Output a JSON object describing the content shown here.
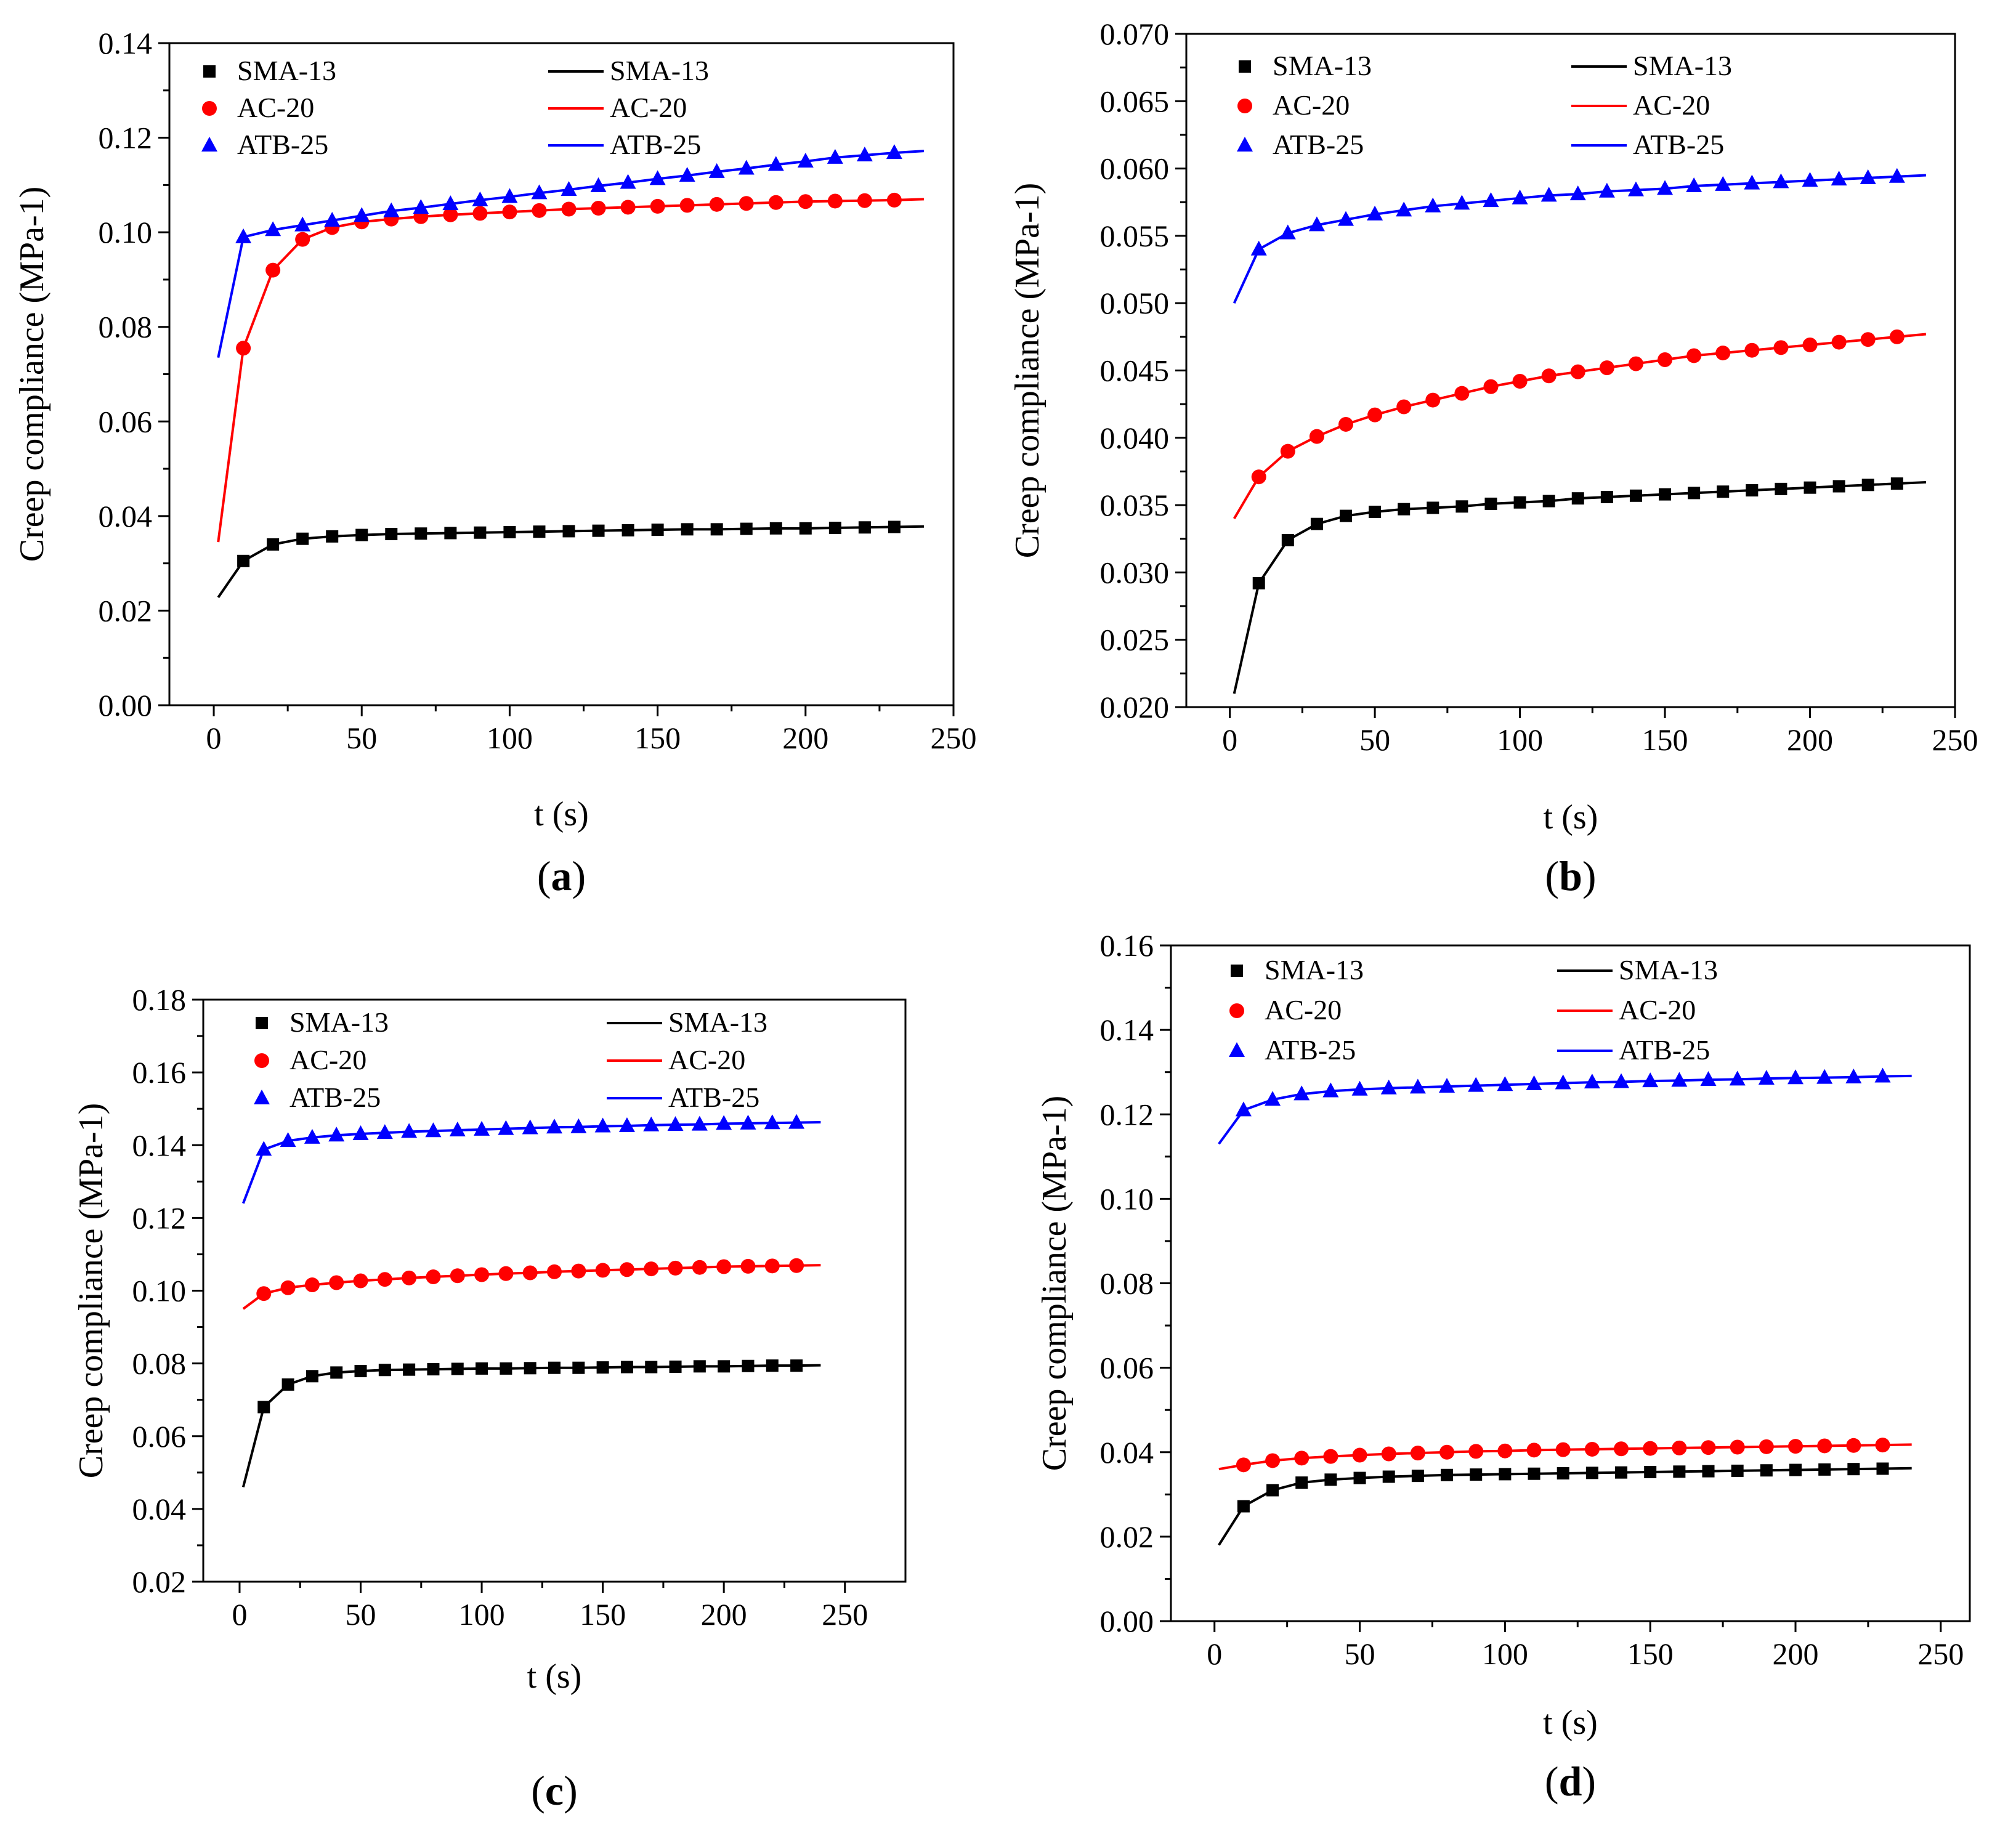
{
  "chart_data": [
    {
      "type": "line",
      "panel_label": "a",
      "xlabel": "t (s)",
      "ylabel": "Creep compliance (MPa-1)",
      "xlim": [
        -15,
        250
      ],
      "ylim": [
        0.0,
        0.14
      ],
      "xticks": [
        0,
        50,
        100,
        150,
        200,
        250
      ],
      "yticks": [
        0.0,
        0.02,
        0.04,
        0.06,
        0.08,
        0.1,
        0.12,
        0.14
      ],
      "ytick_labels": [
        "0.00",
        "0.02",
        "0.04",
        "0.06",
        "0.08",
        "0.10",
        "0.12",
        "0.14"
      ],
      "legend": [
        "SMA-13",
        "AC-20",
        "ATB-25"
      ],
      "series": [
        {
          "name": "SMA-13",
          "color": "#000000",
          "marker": "square",
          "fit_start": 0.0228,
          "x": [
            10,
            20,
            30,
            40,
            50,
            60,
            70,
            80,
            90,
            100,
            110,
            120,
            130,
            140,
            150,
            160,
            170,
            180,
            190,
            200,
            210,
            220,
            230,
            240
          ],
          "y": [
            0.0305,
            0.034,
            0.0352,
            0.0357,
            0.036,
            0.0362,
            0.0363,
            0.0364,
            0.0365,
            0.0366,
            0.0367,
            0.0368,
            0.0369,
            0.037,
            0.0371,
            0.0372,
            0.0372,
            0.0373,
            0.0374,
            0.0374,
            0.0375,
            0.0376,
            0.0377,
            0.0378
          ]
        },
        {
          "name": "AC-20",
          "color": "#ff0000",
          "marker": "circle",
          "fit_start": 0.0345,
          "x": [
            10,
            20,
            30,
            40,
            50,
            60,
            70,
            80,
            90,
            100,
            110,
            120,
            130,
            140,
            150,
            160,
            170,
            180,
            190,
            200,
            210,
            220,
            230,
            240
          ],
          "y": [
            0.0755,
            0.092,
            0.0985,
            0.101,
            0.1022,
            0.1028,
            0.1033,
            0.1037,
            0.104,
            0.1043,
            0.1046,
            0.1049,
            0.1051,
            0.1053,
            0.1055,
            0.1057,
            0.1059,
            0.1061,
            0.1063,
            0.1065,
            0.1066,
            0.1067,
            0.1068,
            0.107
          ]
        },
        {
          "name": "ATB-25",
          "color": "#0000ff",
          "marker": "triangle",
          "fit_start": 0.0735,
          "x": [
            10,
            20,
            30,
            40,
            50,
            60,
            70,
            80,
            90,
            100,
            110,
            120,
            130,
            140,
            150,
            160,
            170,
            180,
            190,
            200,
            210,
            220,
            230,
            240
          ],
          "y": [
            0.099,
            0.1005,
            0.1015,
            0.1025,
            0.1035,
            0.1045,
            0.1052,
            0.106,
            0.1068,
            0.1075,
            0.1083,
            0.109,
            0.1098,
            0.1105,
            0.1113,
            0.112,
            0.1128,
            0.1135,
            0.1143,
            0.115,
            0.1158,
            0.1163,
            0.1168,
            0.1172
          ]
        }
      ]
    },
    {
      "type": "line",
      "panel_label": "b",
      "xlabel": "t (s)",
      "ylabel": "Creep compliance (MPa-1)",
      "xlim": [
        -15,
        250
      ],
      "ylim": [
        0.02,
        0.07
      ],
      "xticks": [
        0,
        50,
        100,
        150,
        200,
        250
      ],
      "yticks": [
        0.02,
        0.025,
        0.03,
        0.035,
        0.04,
        0.045,
        0.05,
        0.055,
        0.06,
        0.065,
        0.07
      ],
      "ytick_labels": [
        "0.020",
        "0.025",
        "0.030",
        "0.035",
        "0.040",
        "0.045",
        "0.050",
        "0.055",
        "0.060",
        "0.065",
        "0.070"
      ],
      "legend": [
        "SMA-13",
        "AC-20",
        "ATB-25"
      ],
      "series": [
        {
          "name": "SMA-13",
          "color": "#000000",
          "marker": "square",
          "fit_start": 0.021,
          "x": [
            10,
            20,
            30,
            40,
            50,
            60,
            70,
            80,
            90,
            100,
            110,
            120,
            130,
            140,
            150,
            160,
            170,
            180,
            190,
            200,
            210,
            220,
            230,
            240
          ],
          "y": [
            0.0292,
            0.0324,
            0.0336,
            0.0342,
            0.0345,
            0.0347,
            0.0348,
            0.0349,
            0.0351,
            0.0352,
            0.0353,
            0.0355,
            0.0356,
            0.0357,
            0.0358,
            0.0359,
            0.036,
            0.0361,
            0.0362,
            0.0363,
            0.0364,
            0.0365,
            0.0366,
            0.0367
          ]
        },
        {
          "name": "AC-20",
          "color": "#ff0000",
          "marker": "circle",
          "fit_start": 0.034,
          "x": [
            10,
            20,
            30,
            40,
            50,
            60,
            70,
            80,
            90,
            100,
            110,
            120,
            130,
            140,
            150,
            160,
            170,
            180,
            190,
            200,
            210,
            220,
            230,
            240
          ],
          "y": [
            0.0371,
            0.039,
            0.0401,
            0.041,
            0.0417,
            0.0423,
            0.0428,
            0.0433,
            0.0438,
            0.0442,
            0.0446,
            0.0449,
            0.0452,
            0.0455,
            0.0458,
            0.0461,
            0.0463,
            0.0465,
            0.0467,
            0.0469,
            0.0471,
            0.0473,
            0.0475,
            0.0477
          ]
        },
        {
          "name": "ATB-25",
          "color": "#0000ff",
          "marker": "triangle",
          "fit_start": 0.05,
          "x": [
            10,
            20,
            30,
            40,
            50,
            60,
            70,
            80,
            90,
            100,
            110,
            120,
            130,
            140,
            150,
            160,
            170,
            180,
            190,
            200,
            210,
            220,
            230,
            240
          ],
          "y": [
            0.054,
            0.0552,
            0.0558,
            0.0562,
            0.0566,
            0.0569,
            0.0572,
            0.0574,
            0.0576,
            0.0578,
            0.058,
            0.0581,
            0.0583,
            0.0584,
            0.0585,
            0.0587,
            0.0588,
            0.0589,
            0.059,
            0.0591,
            0.0592,
            0.0593,
            0.0594,
            0.0595
          ]
        }
      ]
    },
    {
      "type": "line",
      "panel_label": "c",
      "xlabel": "t (s)",
      "ylabel": "Creep compliance (MPa-1)",
      "xlim": [
        -15,
        275
      ],
      "ylim": [
        0.02,
        0.18
      ],
      "xticks": [
        0,
        50,
        100,
        150,
        200,
        250
      ],
      "yticks": [
        0.02,
        0.04,
        0.06,
        0.08,
        0.1,
        0.12,
        0.14,
        0.16,
        0.18
      ],
      "ytick_labels": [
        "0.02",
        "0.04",
        "0.06",
        "0.08",
        "0.10",
        "0.12",
        "0.14",
        "0.16",
        "0.18"
      ],
      "legend": [
        "SMA-13",
        "AC-20",
        "ATB-25"
      ],
      "series": [
        {
          "name": "SMA-13",
          "color": "#000000",
          "marker": "square",
          "fit_start": 0.046,
          "x": [
            10,
            20,
            30,
            40,
            50,
            60,
            70,
            80,
            90,
            100,
            110,
            120,
            130,
            140,
            150,
            160,
            170,
            180,
            190,
            200,
            210,
            220,
            230,
            240
          ],
          "y": [
            0.068,
            0.0742,
            0.0765,
            0.0775,
            0.0779,
            0.0782,
            0.0783,
            0.0784,
            0.0785,
            0.0786,
            0.0786,
            0.0787,
            0.0788,
            0.0788,
            0.0789,
            0.079,
            0.079,
            0.0791,
            0.0792,
            0.0792,
            0.0793,
            0.0794,
            0.0794,
            0.0795
          ]
        },
        {
          "name": "AC-20",
          "color": "#ff0000",
          "marker": "circle",
          "fit_start": 0.095,
          "x": [
            10,
            20,
            30,
            40,
            50,
            60,
            70,
            80,
            90,
            100,
            110,
            120,
            130,
            140,
            150,
            160,
            170,
            180,
            190,
            200,
            210,
            220,
            230,
            240
          ],
          "y": [
            0.0992,
            0.1008,
            0.1016,
            0.1022,
            0.1027,
            0.1031,
            0.1035,
            0.1038,
            0.1041,
            0.1044,
            0.1047,
            0.1049,
            0.1052,
            0.1054,
            0.1056,
            0.1058,
            0.106,
            0.1062,
            0.1064,
            0.1066,
            0.1067,
            0.1068,
            0.1069,
            0.107
          ]
        },
        {
          "name": "ATB-25",
          "color": "#0000ff",
          "marker": "triangle",
          "fit_start": 0.124,
          "x": [
            10,
            20,
            30,
            40,
            50,
            60,
            70,
            80,
            90,
            100,
            110,
            120,
            130,
            140,
            150,
            160,
            170,
            180,
            190,
            200,
            210,
            220,
            230,
            240
          ],
          "y": [
            0.1388,
            0.1412,
            0.1421,
            0.1427,
            0.1431,
            0.1434,
            0.1437,
            0.1439,
            0.1441,
            0.1443,
            0.1445,
            0.1447,
            0.1449,
            0.145,
            0.1452,
            0.1453,
            0.1455,
            0.1456,
            0.1457,
            0.1459,
            0.146,
            0.1461,
            0.1462,
            0.1463
          ]
        }
      ]
    },
    {
      "type": "line",
      "panel_label": "d",
      "xlabel": "t (s)",
      "ylabel": "Creep compliance (MPa-1)",
      "xlim": [
        -15,
        260
      ],
      "ylim": [
        0.0,
        0.16
      ],
      "xticks": [
        0,
        50,
        100,
        150,
        200,
        250
      ],
      "yticks": [
        0.0,
        0.02,
        0.04,
        0.06,
        0.08,
        0.1,
        0.12,
        0.14,
        0.16
      ],
      "ytick_labels": [
        "0.00",
        "0.02",
        "0.04",
        "0.06",
        "0.08",
        "0.10",
        "0.12",
        "0.14",
        "0.16"
      ],
      "legend": [
        "SMA-13",
        "AC-20",
        "ATB-25"
      ],
      "series": [
        {
          "name": "SMA-13",
          "color": "#000000",
          "marker": "square",
          "fit_start": 0.018,
          "x": [
            10,
            20,
            30,
            40,
            50,
            60,
            70,
            80,
            90,
            100,
            110,
            120,
            130,
            140,
            150,
            160,
            170,
            180,
            190,
            200,
            210,
            220,
            230,
            240
          ],
          "y": [
            0.0272,
            0.031,
            0.0328,
            0.0335,
            0.0339,
            0.0342,
            0.0344,
            0.0346,
            0.0347,
            0.0348,
            0.0349,
            0.035,
            0.0351,
            0.0352,
            0.0353,
            0.0354,
            0.0355,
            0.0356,
            0.0357,
            0.0358,
            0.0359,
            0.036,
            0.0361,
            0.0362
          ]
        },
        {
          "name": "AC-20",
          "color": "#ff0000",
          "marker": "circle",
          "fit_start": 0.036,
          "x": [
            10,
            20,
            30,
            40,
            50,
            60,
            70,
            80,
            90,
            100,
            110,
            120,
            130,
            140,
            150,
            160,
            170,
            180,
            190,
            200,
            210,
            220,
            230,
            240
          ],
          "y": [
            0.037,
            0.038,
            0.0386,
            0.039,
            0.0393,
            0.0396,
            0.0398,
            0.04,
            0.0402,
            0.0403,
            0.0405,
            0.0406,
            0.0407,
            0.0408,
            0.0409,
            0.041,
            0.0411,
            0.0412,
            0.0413,
            0.0414,
            0.0415,
            0.0416,
            0.0417,
            0.0418
          ]
        },
        {
          "name": "ATB-25",
          "color": "#0000ff",
          "marker": "triangle",
          "fit_start": 0.113,
          "x": [
            10,
            20,
            30,
            40,
            50,
            60,
            70,
            80,
            90,
            100,
            110,
            120,
            130,
            140,
            150,
            160,
            170,
            180,
            190,
            200,
            210,
            220,
            230,
            240
          ],
          "y": [
            0.121,
            0.1235,
            0.1248,
            0.1255,
            0.1259,
            0.1262,
            0.1264,
            0.1266,
            0.1268,
            0.127,
            0.1272,
            0.1274,
            0.1276,
            0.1277,
            0.1279,
            0.128,
            0.1282,
            0.1283,
            0.1285,
            0.1286,
            0.1287,
            0.1288,
            0.129,
            0.1291
          ]
        }
      ]
    }
  ]
}
